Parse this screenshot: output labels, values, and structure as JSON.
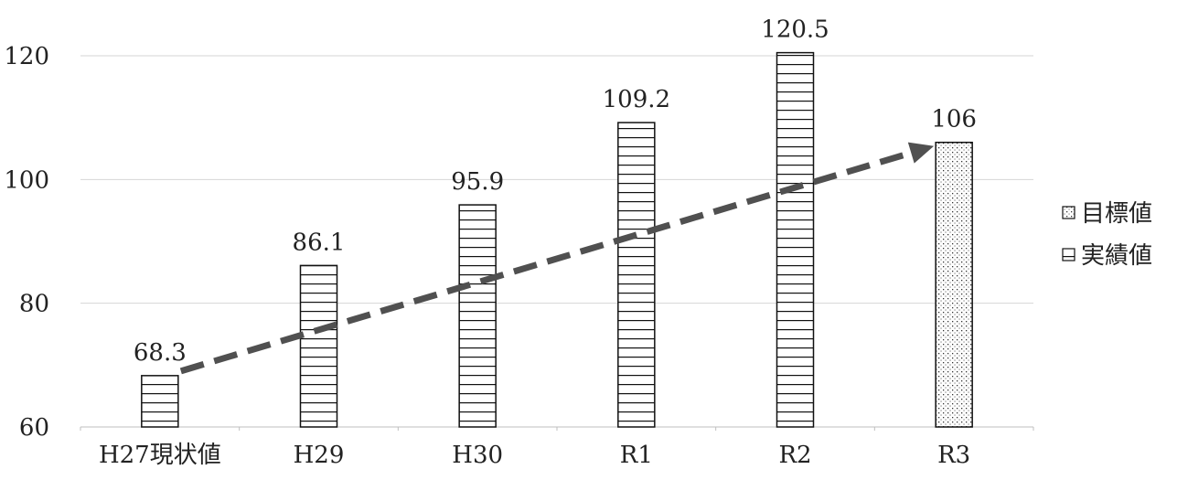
{
  "chart_data": {
    "type": "bar",
    "categories": [
      "H27現状値",
      "H29",
      "H30",
      "R1",
      "R2",
      "R3"
    ],
    "series": [
      {
        "name": "目標値",
        "values": [
          null,
          null,
          null,
          null,
          null,
          106
        ]
      },
      {
        "name": "実績値",
        "values": [
          68.3,
          86.1,
          95.9,
          109.2,
          120.5,
          null
        ]
      }
    ],
    "data_labels": [
      "68.3",
      "86.1",
      "95.9",
      "109.2",
      "120.5",
      "106"
    ],
    "y_ticks": [
      60,
      80,
      100,
      120
    ],
    "ylim": [
      60,
      120
    ],
    "grid": true,
    "legend": {
      "placement": "right",
      "entries": [
        "目標値",
        "実績値"
      ]
    },
    "annotations": [
      {
        "type": "dashed-arrow",
        "from": {
          "category": "H27現状値",
          "value": 68.3
        },
        "to": {
          "category": "R3",
          "value": 106
        }
      }
    ],
    "title": "",
    "xlabel": "",
    "ylabel": ""
  }
}
